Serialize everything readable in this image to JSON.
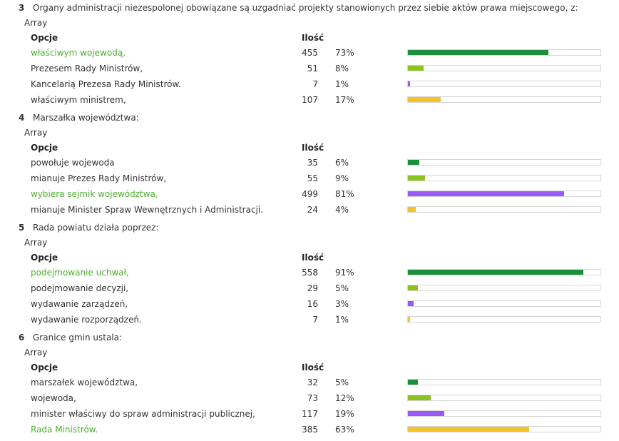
{
  "colors": {
    "bar_1": "#1b8f3a",
    "bar_2": "#8cc21f",
    "bar_3": "#9b59f6",
    "bar_4": "#f5c22a",
    "correct_text": "#4caf30"
  },
  "questions": [
    {
      "number": "3",
      "text": "Organy administracji niezespolonej obowiązane są uzgadniać projekty stanowionych przez siebie aktów prawa miejscowego, z:",
      "array_label": "Array",
      "header_option": "Opcje",
      "header_count": "Ilość",
      "rows": [
        {
          "label": "właściwym wojewodą,",
          "count": "455",
          "percent": "73%",
          "value": 73,
          "correct": true
        },
        {
          "label": "Prezesem Rady Ministrów,",
          "count": "51",
          "percent": "8%",
          "value": 8,
          "correct": false
        },
        {
          "label": "Kancelarią Prezesa Rady Ministrów.",
          "count": "7",
          "percent": "1%",
          "value": 1,
          "correct": false
        },
        {
          "label": "właściwym ministrem,",
          "count": "107",
          "percent": "17%",
          "value": 17,
          "correct": false
        }
      ]
    },
    {
      "number": "4",
      "text": "Marszałka województwa:",
      "array_label": "Array",
      "header_option": "Opcje",
      "header_count": "Ilość",
      "rows": [
        {
          "label": "powołuje wojewoda",
          "count": "35",
          "percent": "6%",
          "value": 6,
          "correct": false
        },
        {
          "label": "mianuje Prezes Rady Ministrów,",
          "count": "55",
          "percent": "9%",
          "value": 9,
          "correct": false
        },
        {
          "label": "wybiera sejmik województwa,",
          "count": "499",
          "percent": "81%",
          "value": 81,
          "correct": true
        },
        {
          "label": "mianuje Minister Spraw Wewnętrznych i Administracji.",
          "count": "24",
          "percent": "4%",
          "value": 4,
          "correct": false
        }
      ]
    },
    {
      "number": "5",
      "text": "Rada powiatu działa poprzez:",
      "array_label": "Array",
      "header_option": "Opcje",
      "header_count": "Ilość",
      "rows": [
        {
          "label": "podejmowanie uchwał,",
          "count": "558",
          "percent": "91%",
          "value": 91,
          "correct": true
        },
        {
          "label": "podejmowanie decyzji,",
          "count": "29",
          "percent": "5%",
          "value": 5,
          "correct": false
        },
        {
          "label": "wydawanie zarządzeń,",
          "count": "16",
          "percent": "3%",
          "value": 3,
          "correct": false
        },
        {
          "label": "wydawanie rozporządzeń.",
          "count": "7",
          "percent": "1%",
          "value": 1,
          "correct": false
        }
      ]
    },
    {
      "number": "6",
      "text": "Granice gmin ustala:",
      "array_label": "Array",
      "header_option": "Opcje",
      "header_count": "Ilość",
      "rows": [
        {
          "label": "marszałek województwa,",
          "count": "32",
          "percent": "5%",
          "value": 5,
          "correct": false
        },
        {
          "label": "wojewoda,",
          "count": "73",
          "percent": "12%",
          "value": 12,
          "correct": false
        },
        {
          "label": "minister właściwy do spraw administracji publicznej,",
          "count": "117",
          "percent": "19%",
          "value": 19,
          "correct": false
        },
        {
          "label": "Rada Ministrów.",
          "count": "385",
          "percent": "63%",
          "value": 63,
          "correct": true
        }
      ]
    }
  ]
}
